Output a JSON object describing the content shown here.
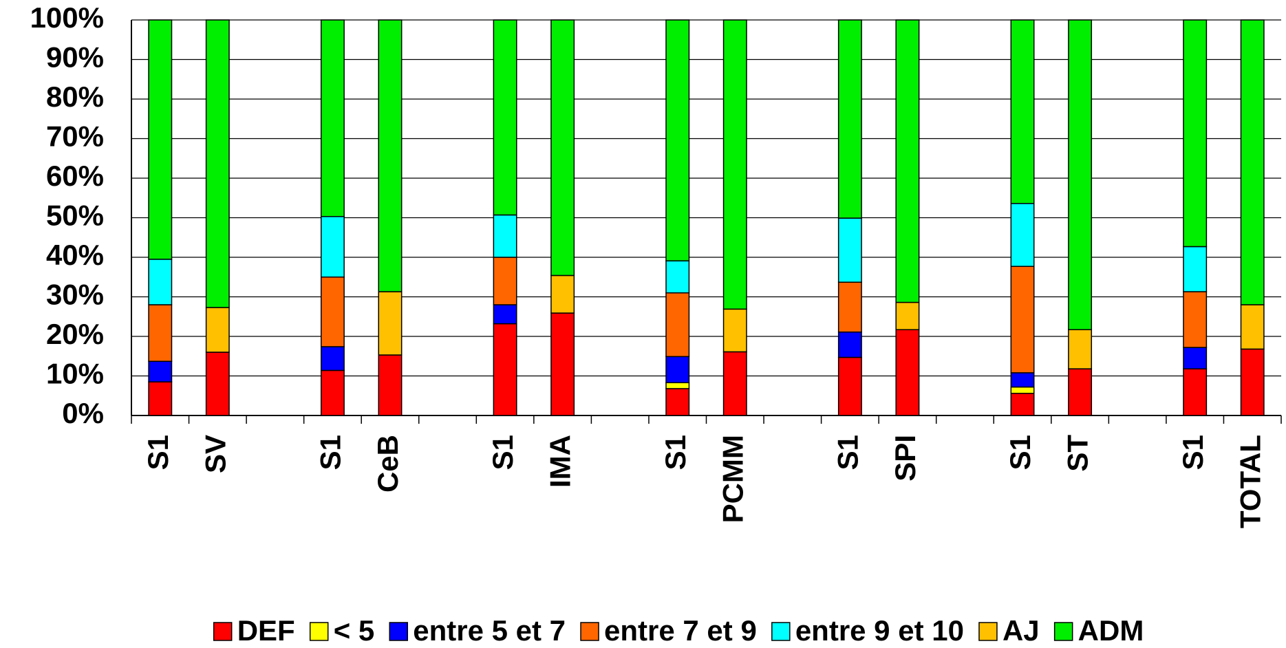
{
  "chart_data": {
    "type": "stacked_bar",
    "categories": [
      "S1",
      "SV",
      null,
      "S1",
      "CeB",
      null,
      "S1",
      "IMA",
      null,
      "S1",
      "PCMM",
      null,
      "S1",
      "SPI",
      null,
      "S1",
      "ST",
      null,
      "S1",
      "TOTAL"
    ],
    "series": [
      {
        "name": "DEF",
        "color": "#ff0000",
        "values": [
          8.5,
          16,
          null,
          11.4,
          15.3,
          null,
          23.2,
          25.9,
          null,
          6.8,
          16.1,
          null,
          14.7,
          21.7,
          null,
          5.6,
          11.8,
          null,
          11.8,
          16.8
        ]
      },
      {
        "name": "< 5",
        "color": "#ffff00",
        "values": [
          0,
          0,
          null,
          0,
          0,
          null,
          0,
          0,
          null,
          1.5,
          0,
          null,
          0,
          0,
          null,
          1.6,
          0,
          null,
          0,
          0
        ]
      },
      {
        "name": "entre 5 et 7",
        "color": "#0000ff",
        "values": [
          5.2,
          0,
          null,
          6,
          0,
          null,
          4.8,
          0,
          null,
          6.6,
          0,
          null,
          6.4,
          0,
          null,
          3.6,
          0,
          null,
          5.4,
          0
        ]
      },
      {
        "name": "entre 7 et 9",
        "color": "#ff6600",
        "values": [
          14.3,
          0,
          null,
          17.6,
          0,
          null,
          12,
          0,
          null,
          16.1,
          0,
          null,
          12.6,
          0,
          null,
          26.9,
          0,
          null,
          14.1,
          0
        ]
      },
      {
        "name": "entre 9 et 10",
        "color": "#00ffff",
        "values": [
          11.5,
          0,
          null,
          15.3,
          0,
          null,
          10.7,
          0,
          null,
          8.1,
          0,
          null,
          16.2,
          0,
          null,
          15.9,
          0,
          null,
          11.4,
          0
        ]
      },
      {
        "name": "AJ",
        "color": "#ffc000",
        "values": [
          0,
          11.3,
          null,
          0,
          16,
          null,
          0,
          9.5,
          null,
          0,
          10.8,
          null,
          0,
          6.9,
          null,
          0,
          9.9,
          null,
          0,
          11.2
        ]
      },
      {
        "name": "ADM",
        "color": "#00ee00",
        "values": [
          60.5,
          72.7,
          null,
          49.7,
          68.7,
          null,
          49.3,
          64.6,
          null,
          60.9,
          73.1,
          null,
          50.1,
          71.4,
          null,
          46.4,
          78.3,
          null,
          57.3,
          72
        ]
      }
    ],
    "ylim": [
      0,
      100
    ],
    "yticks": [
      {
        "value": 0,
        "label": "0%"
      },
      {
        "value": 10,
        "label": "10%"
      },
      {
        "value": 20,
        "label": "20%"
      },
      {
        "value": 30,
        "label": "30%"
      },
      {
        "value": 40,
        "label": "40%"
      },
      {
        "value": 50,
        "label": "50%"
      },
      {
        "value": 60,
        "label": "60%"
      },
      {
        "value": 70,
        "label": "70%"
      },
      {
        "value": 80,
        "label": "80%"
      },
      {
        "value": 90,
        "label": "90%"
      },
      {
        "value": 100,
        "label": "100%"
      }
    ],
    "grid": true,
    "legend": "bottom"
  }
}
